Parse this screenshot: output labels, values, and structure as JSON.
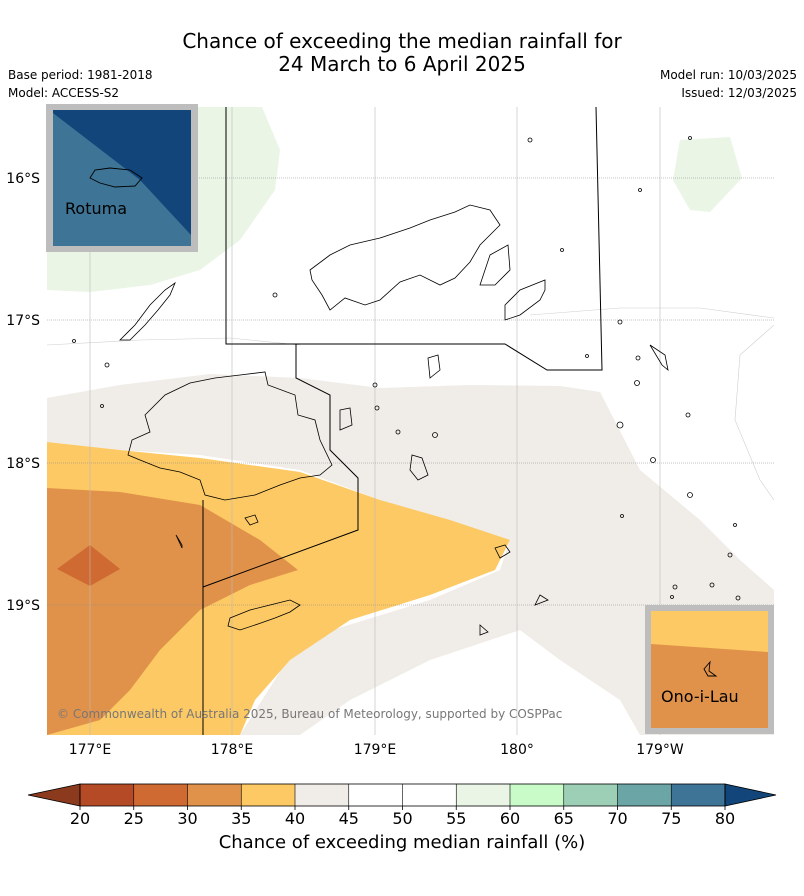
{
  "title_line1": "Chance of exceeding the median rainfall for",
  "title_line2": "24 March to 6 April 2025",
  "meta": {
    "base_period": "Base period: 1981-2018",
    "model": "Model: ACCESS-S2",
    "model_run": "Model run: 10/03/2025",
    "issued": "Issued: 12/03/2025"
  },
  "map": {
    "lat_labels": [
      "16°S",
      "17°S",
      "18°S",
      "19°S"
    ],
    "lon_labels": [
      "177°E",
      "178°E",
      "179°E",
      "180°",
      "179°W"
    ],
    "attribution": "© Commonwealth of Australia 2025, Bureau of Meteorology, supported by COSPPac",
    "insets": {
      "rotuma": "Rotuma",
      "ono_i_lau": "Ono-i-Lau"
    }
  },
  "colorbar": {
    "label": "Chance of exceeding median rainfall (%)",
    "ticks": [
      "20",
      "25",
      "30",
      "35",
      "40",
      "45",
      "50",
      "55",
      "60",
      "65",
      "70",
      "75",
      "80"
    ],
    "colors": {
      "lt20": "#8b3a1e",
      "20-25": "#b44b26",
      "25-30": "#cf6a33",
      "30-35": "#e0924a",
      "35-40": "#fdc964",
      "40-45": "#f0ece7",
      "45-50": "#ffffff",
      "50-55": "#ffffff",
      "55-60": "#eaf5e6",
      "60-65": "#c9fbc9",
      "65-70": "#9ccfb5",
      "70-75": "#6ca5a5",
      "75-80": "#3e7495",
      "gt80": "#12467a"
    }
  }
}
